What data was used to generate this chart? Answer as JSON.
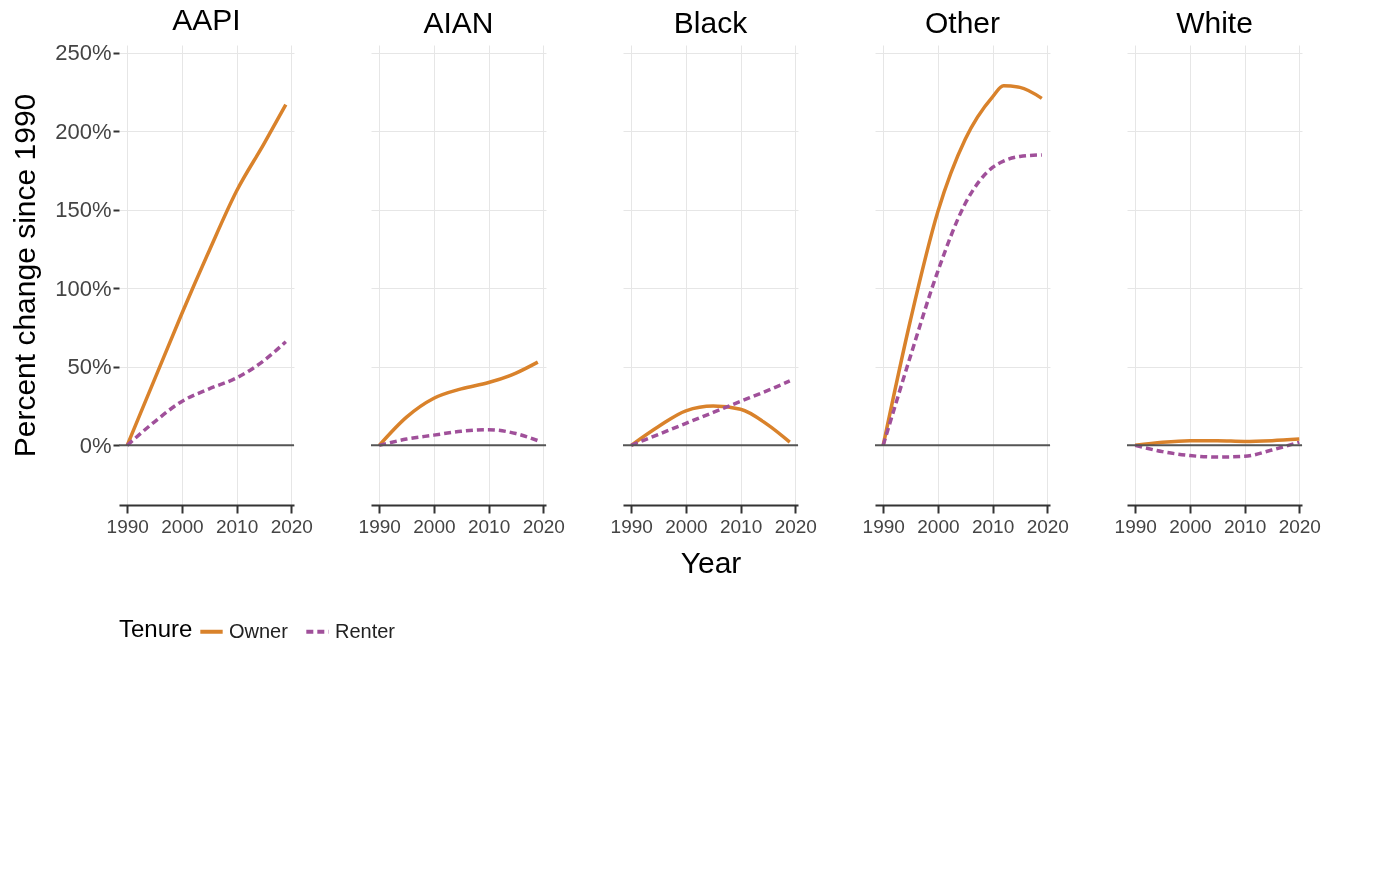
{
  "chart_data": [
    {
      "type": "line",
      "title": "AAPI",
      "legend": "bottom",
      "legend_title": "Tenure",
      "ylabel": "Percent change since 1990",
      "x": [
        1990,
        1995,
        2000,
        2005,
        2010,
        2015,
        2019
      ],
      "xlim": [
        1988.5,
        2020.5
      ],
      "xticks": [
        1990,
        2000,
        2010,
        2020
      ],
      "ylim": [
        -38,
        255
      ],
      "yticks": [
        {
          "value": 0,
          "label": "0%"
        },
        {
          "value": 50,
          "label": "50%"
        },
        {
          "value": 100,
          "label": "100%"
        },
        {
          "value": 150,
          "label": "150%"
        },
        {
          "value": 200,
          "label": "200%"
        },
        {
          "value": 250,
          "label": "250%"
        }
      ],
      "grid": true,
      "ref_lines": [
        {
          "axis": "y",
          "value": 0,
          "color": "#555555"
        }
      ],
      "series": [
        {
          "name": "Owner",
          "color": "#d9822b",
          "line_style": "solid",
          "values": [
            0,
            42,
            84,
            124,
            162,
            192,
            217
          ]
        },
        {
          "name": "Renter",
          "color": "#a0509a",
          "line_style": "dashed",
          "values": [
            0,
            15,
            28,
            36,
            43,
            54,
            66
          ]
        }
      ]
    },
    {
      "type": "line",
      "title": "AIAN",
      "x": [
        1990,
        1995,
        2000,
        2005,
        2010,
        2015,
        2019
      ],
      "xlim": [
        1988.5,
        2020.5
      ],
      "xticks": [
        1990,
        2000,
        2010,
        2020
      ],
      "ylim": [
        -38,
        255
      ],
      "yticks": [
        0,
        50,
        100,
        150,
        200,
        250
      ],
      "grid": true,
      "tick_labels": "x",
      "ref_lines": [
        {
          "axis": "y",
          "value": 0,
          "color": "#555555"
        }
      ],
      "series": [
        {
          "name": "Owner",
          "color": "#d9822b",
          "line_style": "solid",
          "values": [
            0,
            18,
            30,
            36,
            40,
            46,
            53
          ]
        },
        {
          "name": "Renter",
          "color": "#a0509a",
          "line_style": "dashed",
          "values": [
            0,
            4,
            6.5,
            9,
            10,
            7.5,
            3
          ]
        }
      ]
    },
    {
      "type": "line",
      "title": "Black",
      "xlabel": "Year",
      "x": [
        1990,
        1995,
        2000,
        2005,
        2010,
        2015,
        2019
      ],
      "xlim": [
        1988.5,
        2020.5
      ],
      "xticks": [
        1990,
        2000,
        2010,
        2020
      ],
      "ylim": [
        -38,
        255
      ],
      "yticks": [
        0,
        50,
        100,
        150,
        200,
        250
      ],
      "grid": true,
      "tick_labels": "x",
      "ref_lines": [
        {
          "axis": "y",
          "value": 0,
          "color": "#555555"
        }
      ],
      "series": [
        {
          "name": "Owner",
          "color": "#d9822b",
          "line_style": "solid",
          "values": [
            0,
            12,
            22,
            25,
            23,
            13,
            2
          ]
        },
        {
          "name": "Renter",
          "color": "#a0509a",
          "line_style": "dashed",
          "values": [
            0,
            7,
            14,
            21,
            28,
            35,
            41
          ]
        }
      ]
    },
    {
      "type": "line",
      "title": "Other",
      "x": [
        1990,
        1995,
        2000,
        2005,
        2010,
        2012,
        2015,
        2019
      ],
      "xlim": [
        1988.5,
        2020.5
      ],
      "xticks": [
        1990,
        2000,
        2010,
        2020
      ],
      "ylim": [
        -38,
        255
      ],
      "yticks": [
        0,
        50,
        100,
        150,
        200,
        250
      ],
      "grid": true,
      "tick_labels": "x",
      "ref_lines": [
        {
          "axis": "y",
          "value": 0,
          "color": "#555555"
        }
      ],
      "series": [
        {
          "name": "Owner",
          "color": "#d9822b",
          "line_style": "solid",
          "values": [
            0,
            80,
            149,
            195,
            222,
            229,
            228,
            221
          ]
        },
        {
          "name": "Renter",
          "color": "#a0509a",
          "line_style": "dashed",
          "values": [
            0,
            57,
            111,
            154,
            177,
            181,
            184,
            185
          ]
        }
      ]
    },
    {
      "type": "line",
      "title": "White",
      "x": [
        1990,
        1995,
        2000,
        2005,
        2010,
        2015,
        2020
      ],
      "xlim": [
        1988.5,
        2020.5
      ],
      "xticks": [
        1990,
        2000,
        2010,
        2020
      ],
      "ylim": [
        -38,
        255
      ],
      "yticks": [
        0,
        50,
        100,
        150,
        200,
        250
      ],
      "grid": true,
      "tick_labels": "x",
      "ref_lines": [
        {
          "axis": "y",
          "value": 0,
          "color": "#555555"
        }
      ],
      "series": [
        {
          "name": "Owner",
          "color": "#d9822b",
          "line_style": "solid",
          "values": [
            0,
            2,
            3,
            3,
            2.5,
            3,
            4
          ]
        },
        {
          "name": "Renter",
          "color": "#a0509a",
          "line_style": "dashed",
          "values": [
            0,
            -4,
            -6.5,
            -7.5,
            -7,
            -3,
            2
          ]
        }
      ]
    }
  ]
}
